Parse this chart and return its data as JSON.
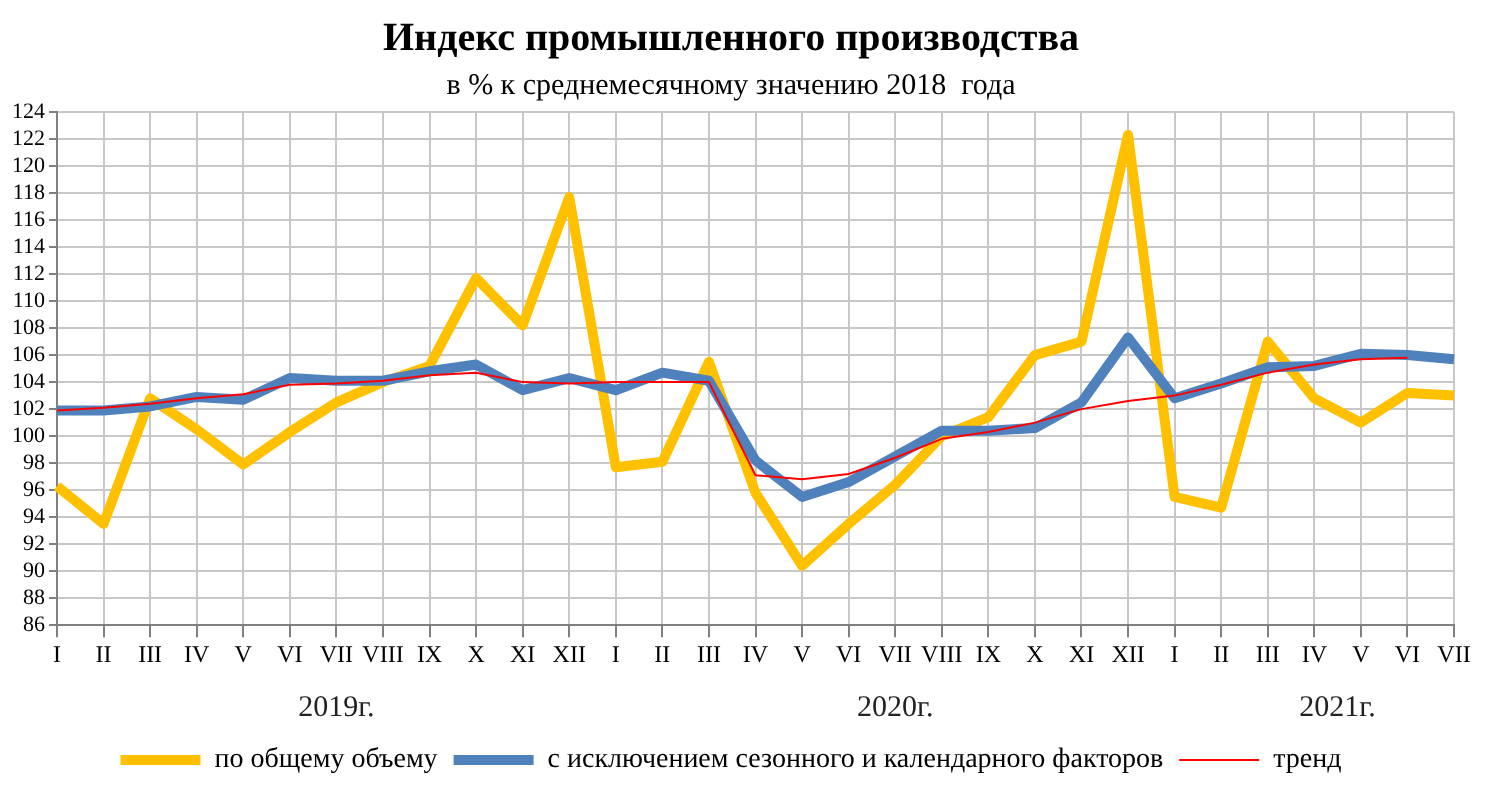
{
  "chart_data": {
    "type": "line",
    "title": "Индекс промышленного производства",
    "subtitle": "в % к среднемесячному значению 2018  года",
    "categories": [
      "I",
      "II",
      "III",
      "IV",
      "V",
      "VI",
      "VII",
      "VIII",
      "IX",
      "X",
      "XI",
      "XII",
      "I",
      "II",
      "III",
      "IV",
      "V",
      "VI",
      "VII",
      "VIII",
      "IX",
      "X",
      "XI",
      "XII",
      "I",
      "II",
      "III",
      "IV",
      "V",
      "VI",
      "VII"
    ],
    "series": [
      {
        "name": "по общему объему",
        "color": "#ffc000",
        "values": [
          96.3,
          93.5,
          102.8,
          100.5,
          97.9,
          100.3,
          102.5,
          104,
          105.2,
          111.7,
          108.2,
          117.7,
          97.7,
          98.1,
          105.5,
          95.8,
          90.4,
          93.5,
          96.4,
          100,
          101.4,
          106,
          107,
          122.3,
          95.5,
          94.7,
          107,
          102.8,
          101,
          103.2,
          103
        ]
      },
      {
        "name": "с исключением сезонного и календарного факторов",
        "color": "#4f81bd",
        "values": [
          101.9,
          101.9,
          102.2,
          102.9,
          102.7,
          104.3,
          104.1,
          104.1,
          104.8,
          105.3,
          103.4,
          104.3,
          103.4,
          104.7,
          104.1,
          98.2,
          95.5,
          96.6,
          98.5,
          100.4,
          100.4,
          100.6,
          102.5,
          107.3,
          102.8,
          103.9,
          105.1,
          105.2,
          106.1,
          106,
          105.7
        ]
      },
      {
        "name": "тренд",
        "color": "#ff0000",
        "values": [
          101.9,
          102.1,
          102.4,
          102.8,
          103.1,
          103.8,
          103.9,
          104.1,
          104.5,
          104.7,
          104,
          103.9,
          104,
          104,
          104,
          97.1,
          96.8,
          97.2,
          98.4,
          99.8,
          100.3,
          101,
          102,
          102.6,
          103,
          103.8,
          104.7,
          105.3,
          105.7,
          105.8,
          null
        ]
      }
    ],
    "ylim": [
      86,
      124
    ],
    "yticks": [
      86,
      88,
      90,
      92,
      94,
      96,
      98,
      100,
      102,
      104,
      106,
      108,
      110,
      112,
      114,
      116,
      118,
      120,
      122,
      124
    ],
    "annotations": [
      "2019г.",
      "2020г.",
      "2021г."
    ],
    "grid": true,
    "legend": "bottom",
    "marker": "none",
    "line_style": "solid"
  }
}
